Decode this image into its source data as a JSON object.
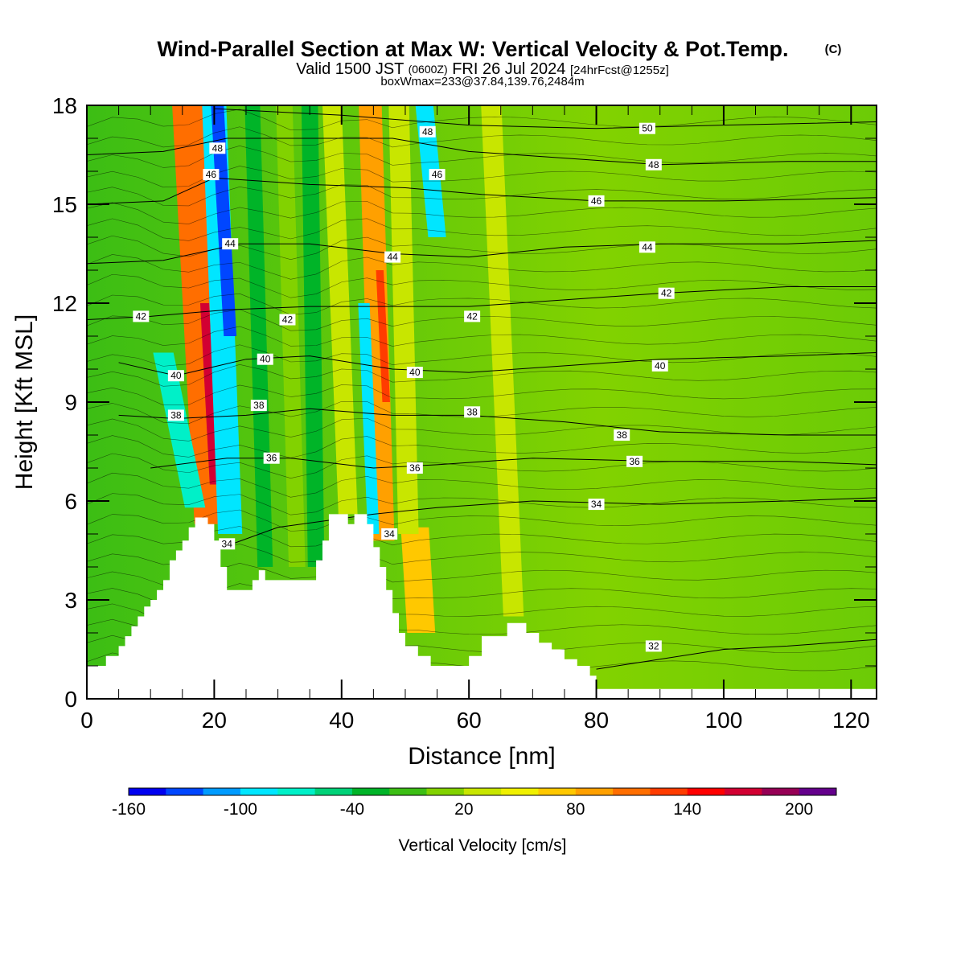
{
  "chart_data": {
    "type": "heatmap",
    "title": "Wind-Parallel Section at Max W: Vertical Velocity & Pot.Temp.",
    "title_mark": "(C)",
    "subtitle": {
      "prefix": "Valid 1500 JST",
      "zulu": "(0600Z)",
      "date": "FRI 26 Jul 2024",
      "forecast": "[24hrFcst@1255z]"
    },
    "box_info": "boxWmax=233@37.84,139.76,2484m",
    "xlabel": "Distance [nm]",
    "ylabel": "Height [Kft MSL]",
    "xlim": [
      0,
      124
    ],
    "ylim": [
      0,
      18
    ],
    "x_ticks": [
      "0",
      "20",
      "40",
      "60",
      "80",
      "100",
      "120"
    ],
    "y_ticks": [
      "0",
      "3",
      "6",
      "9",
      "12",
      "15",
      "18"
    ],
    "colorbar": {
      "label": "Vertical Velocity [cm/s]",
      "tick_labels": [
        "-160",
        "-100",
        "-40",
        "20",
        "80",
        "140",
        "200"
      ],
      "colors": [
        "#0000f0",
        "#0046ff",
        "#009bff",
        "#00e6ff",
        "#00f0c8",
        "#00d278",
        "#00b428",
        "#3cbe14",
        "#82d200",
        "#c8e600",
        "#f0f000",
        "#ffc800",
        "#ffa000",
        "#ff6e00",
        "#ff3c00",
        "#ff0000",
        "#d20032",
        "#960055",
        "#64008c"
      ]
    },
    "terrain_profile": [
      [
        0,
        1.0
      ],
      [
        3,
        1.0
      ],
      [
        3,
        1.3
      ],
      [
        5,
        1.3
      ],
      [
        5,
        1.6
      ],
      [
        6,
        1.6
      ],
      [
        6,
        1.9
      ],
      [
        7,
        1.9
      ],
      [
        7,
        2.2
      ],
      [
        8,
        2.2
      ],
      [
        8,
        2.5
      ],
      [
        9,
        2.5
      ],
      [
        9,
        2.8
      ],
      [
        10,
        2.8
      ],
      [
        10,
        3.0
      ],
      [
        11,
        3.0
      ],
      [
        11,
        3.3
      ],
      [
        12,
        3.3
      ],
      [
        12,
        3.6
      ],
      [
        13,
        3.6
      ],
      [
        13,
        4.2
      ],
      [
        14,
        4.2
      ],
      [
        14,
        4.5
      ],
      [
        15,
        4.5
      ],
      [
        15,
        4.8
      ],
      [
        16,
        4.8
      ],
      [
        16,
        5.2
      ],
      [
        17,
        5.2
      ],
      [
        17,
        5.5
      ],
      [
        19,
        5.5
      ],
      [
        19,
        5.3
      ],
      [
        20,
        5.3
      ],
      [
        20,
        4.8
      ],
      [
        21,
        4.8
      ],
      [
        21,
        4.0
      ],
      [
        22,
        4.0
      ],
      [
        22,
        3.3
      ],
      [
        26,
        3.3
      ],
      [
        26,
        3.6
      ],
      [
        27,
        3.6
      ],
      [
        27,
        3.9
      ],
      [
        28,
        3.9
      ],
      [
        28,
        3.6
      ],
      [
        36,
        3.6
      ],
      [
        36,
        4.2
      ],
      [
        37,
        4.2
      ],
      [
        37,
        4.8
      ],
      [
        38,
        4.8
      ],
      [
        38,
        5.6
      ],
      [
        41,
        5.6
      ],
      [
        41,
        5.3
      ],
      [
        42,
        5.3
      ],
      [
        42,
        5.6
      ],
      [
        44,
        5.6
      ],
      [
        44,
        5.3
      ],
      [
        45,
        5.3
      ],
      [
        45,
        4.6
      ],
      [
        46,
        4.6
      ],
      [
        46,
        4.0
      ],
      [
        47,
        4.0
      ],
      [
        47,
        3.3
      ],
      [
        48,
        3.3
      ],
      [
        48,
        2.6
      ],
      [
        49,
        2.6
      ],
      [
        49,
        2.0
      ],
      [
        50,
        2.0
      ],
      [
        50,
        1.6
      ],
      [
        52,
        1.6
      ],
      [
        52,
        1.3
      ],
      [
        54,
        1.3
      ],
      [
        54,
        1.0
      ],
      [
        60,
        1.0
      ],
      [
        60,
        1.3
      ],
      [
        62,
        1.3
      ],
      [
        62,
        1.9
      ],
      [
        66,
        1.9
      ],
      [
        66,
        2.3
      ],
      [
        69,
        2.3
      ],
      [
        69,
        2.0
      ],
      [
        71,
        2.0
      ],
      [
        71,
        1.7
      ],
      [
        73,
        1.7
      ],
      [
        73,
        1.5
      ],
      [
        75,
        1.5
      ],
      [
        75,
        1.2
      ],
      [
        77,
        1.2
      ],
      [
        77,
        1.0
      ],
      [
        79,
        1.0
      ],
      [
        79,
        0.7
      ],
      [
        80,
        0.7
      ],
      [
        80,
        0.3
      ],
      [
        124,
        0.3
      ]
    ],
    "updraft_bands": [
      {
        "base": [
          19.5,
          5.3
        ],
        "top": [
          16.0,
          18
        ],
        "half_width": 2.6,
        "color": "#ff6e00"
      },
      {
        "base": [
          20.0,
          6.5
        ],
        "top": [
          18.5,
          12
        ],
        "half_width": 0.7,
        "color": "#d20032"
      },
      {
        "base": [
          46.5,
          4.8
        ],
        "top": [
          44.5,
          18
        ],
        "half_width": 1.8,
        "color": "#ffa000"
      },
      {
        "base": [
          47.0,
          9.0
        ],
        "top": [
          46.0,
          13
        ],
        "half_width": 0.6,
        "color": "#ff3c00"
      },
      {
        "base": [
          52.5,
          2.0
        ],
        "top": [
          51.5,
          5.2
        ],
        "half_width": 2.2,
        "color": "#ffc800"
      },
      {
        "base": [
          41.0,
          5.6
        ],
        "top": [
          38.5,
          18
        ],
        "half_width": 1.5,
        "color": "#c8e600"
      },
      {
        "base": [
          50.5,
          5.0
        ],
        "top": [
          49.0,
          18
        ],
        "half_width": 1.6,
        "color": "#c8e600"
      },
      {
        "base": [
          67.0,
          2.5
        ],
        "top": [
          63.5,
          18
        ],
        "half_width": 1.6,
        "color": "#c8e600"
      },
      {
        "base": [
          33.0,
          4.0
        ],
        "top": [
          31.0,
          18
        ],
        "half_width": 1.3,
        "color": "#82d200"
      }
    ],
    "downdraft_bands": [
      {
        "base": [
          22.5,
          5.0
        ],
        "top": [
          20.0,
          18
        ],
        "half_width": 1.9,
        "color": "#00e6ff"
      },
      {
        "base": [
          22.5,
          11.0
        ],
        "top": [
          20.5,
          18
        ],
        "half_width": 1.0,
        "color": "#0046ff"
      },
      {
        "base": [
          17.0,
          5.8
        ],
        "top": [
          12.0,
          10.5
        ],
        "half_width": 1.6,
        "color": "#00f0c8"
      },
      {
        "base": [
          45.0,
          5.0
        ],
        "top": [
          43.5,
          12
        ],
        "half_width": 0.9,
        "color": "#00e6ff"
      },
      {
        "base": [
          55.0,
          14.0
        ],
        "top": [
          53.0,
          18
        ],
        "half_width": 1.4,
        "color": "#00e6ff"
      },
      {
        "base": [
          36.0,
          4.0
        ],
        "top": [
          35.0,
          18
        ],
        "half_width": 1.3,
        "color": "#00b428"
      },
      {
        "base": [
          28.0,
          4.0
        ],
        "top": [
          26.0,
          18
        ],
        "half_width": 1.2,
        "color": "#00b428"
      }
    ],
    "theta_contours": [
      {
        "value": "32",
        "points": [
          [
            80,
            0.9
          ],
          [
            90,
            1.2
          ],
          [
            100,
            1.5
          ],
          [
            110,
            1.6
          ],
          [
            124,
            1.8
          ]
        ],
        "label": [
          89,
          1.6
        ]
      },
      {
        "value": "34",
        "points": [
          [
            20,
            4.5
          ],
          [
            30,
            5.2
          ],
          [
            45,
            5.6
          ],
          [
            55,
            5.8
          ],
          [
            70,
            6.0
          ],
          [
            90,
            5.9
          ],
          [
            110,
            6.0
          ],
          [
            124,
            6.1
          ]
        ],
        "label": [
          80,
          5.9
        ]
      },
      {
        "value": "36",
        "points": [
          [
            10,
            7.0
          ],
          [
            22,
            7.3
          ],
          [
            32,
            7.3
          ],
          [
            45,
            7.0
          ],
          [
            55,
            7.1
          ],
          [
            70,
            7.3
          ],
          [
            90,
            7.2
          ],
          [
            110,
            7.2
          ],
          [
            124,
            7.1
          ]
        ],
        "label": [
          86,
          7.2
        ]
      },
      {
        "value": "38",
        "points": [
          [
            5,
            8.6
          ],
          [
            14,
            8.5
          ],
          [
            25,
            8.6
          ],
          [
            35,
            8.8
          ],
          [
            48,
            8.6
          ],
          [
            60,
            8.6
          ],
          [
            75,
            8.4
          ],
          [
            90,
            8.1
          ],
          [
            110,
            8.0
          ],
          [
            124,
            8.0
          ]
        ],
        "label": [
          84,
          8.0
        ]
      },
      {
        "value": "40",
        "points": [
          [
            5,
            10.2
          ],
          [
            14,
            9.8
          ],
          [
            25,
            10.3
          ],
          [
            35,
            10.4
          ],
          [
            48,
            10.0
          ],
          [
            60,
            9.9
          ],
          [
            75,
            10.1
          ],
          [
            90,
            10.3
          ],
          [
            110,
            10.4
          ],
          [
            124,
            10.5
          ]
        ],
        "label": [
          90,
          10.1
        ]
      },
      {
        "value": "42",
        "points": [
          [
            0,
            11.5
          ],
          [
            10,
            11.6
          ],
          [
            22,
            11.8
          ],
          [
            35,
            11.9
          ],
          [
            48,
            11.9
          ],
          [
            60,
            11.9
          ],
          [
            75,
            12.1
          ],
          [
            90,
            12.3
          ],
          [
            110,
            12.5
          ],
          [
            124,
            12.5
          ]
        ],
        "label": [
          91,
          12.3
        ]
      },
      {
        "value": "44",
        "points": [
          [
            0,
            13.2
          ],
          [
            12,
            13.3
          ],
          [
            24,
            13.8
          ],
          [
            35,
            13.8
          ],
          [
            48,
            13.5
          ],
          [
            60,
            13.4
          ],
          [
            75,
            13.7
          ],
          [
            90,
            13.8
          ],
          [
            110,
            13.8
          ],
          [
            124,
            13.9
          ]
        ],
        "label": [
          88,
          13.7
        ]
      },
      {
        "value": "46",
        "points": [
          [
            0,
            15.0
          ],
          [
            12,
            15.1
          ],
          [
            20,
            15.8
          ],
          [
            35,
            15.6
          ],
          [
            50,
            15.5
          ],
          [
            62,
            15.3
          ],
          [
            80,
            15.1
          ],
          [
            100,
            15.1
          ],
          [
            124,
            15.2
          ]
        ],
        "label": [
          80,
          15.1
        ]
      },
      {
        "value": "48",
        "points": [
          [
            0,
            16.5
          ],
          [
            12,
            16.6
          ],
          [
            22,
            17.0
          ],
          [
            35,
            17.0
          ],
          [
            48,
            17.0
          ],
          [
            60,
            16.6
          ],
          [
            75,
            16.4
          ],
          [
            90,
            16.2
          ],
          [
            110,
            16.3
          ],
          [
            124,
            16.3
          ]
        ],
        "label": [
          89,
          16.2
        ]
      },
      {
        "value": "50",
        "points": [
          [
            20,
            17.9
          ],
          [
            40,
            17.7
          ],
          [
            60,
            17.4
          ],
          [
            80,
            17.3
          ],
          [
            100,
            17.4
          ],
          [
            124,
            17.5
          ]
        ],
        "label": [
          88,
          17.3
        ]
      }
    ],
    "theta_labels_extra": [
      {
        "value": "48",
        "x": 20.5,
        "y": 16.7
      },
      {
        "value": "46",
        "x": 19.5,
        "y": 15.9
      },
      {
        "value": "44",
        "x": 22.5,
        "y": 13.8
      },
      {
        "value": "42",
        "x": 8.5,
        "y": 11.6
      },
      {
        "value": "42",
        "x": 31.5,
        "y": 11.5
      },
      {
        "value": "40",
        "x": 28.0,
        "y": 10.3
      },
      {
        "value": "40",
        "x": 14.0,
        "y": 9.8
      },
      {
        "value": "38",
        "x": 27.0,
        "y": 8.9
      },
      {
        "value": "38",
        "x": 14.0,
        "y": 8.6
      },
      {
        "value": "36",
        "x": 29.0,
        "y": 7.3
      },
      {
        "value": "34",
        "x": 22.0,
        "y": 4.7
      },
      {
        "value": "48",
        "x": 53.5,
        "y": 17.2
      },
      {
        "value": "46",
        "x": 55.0,
        "y": 15.9
      },
      {
        "value": "44",
        "x": 48.0,
        "y": 13.4
      },
      {
        "value": "42",
        "x": 60.5,
        "y": 11.6
      },
      {
        "value": "40",
        "x": 51.5,
        "y": 9.9
      },
      {
        "value": "38",
        "x": 60.5,
        "y": 8.7
      },
      {
        "value": "36",
        "x": 51.5,
        "y": 7.0
      },
      {
        "value": "34",
        "x": 47.5,
        "y": 5.0
      }
    ]
  }
}
